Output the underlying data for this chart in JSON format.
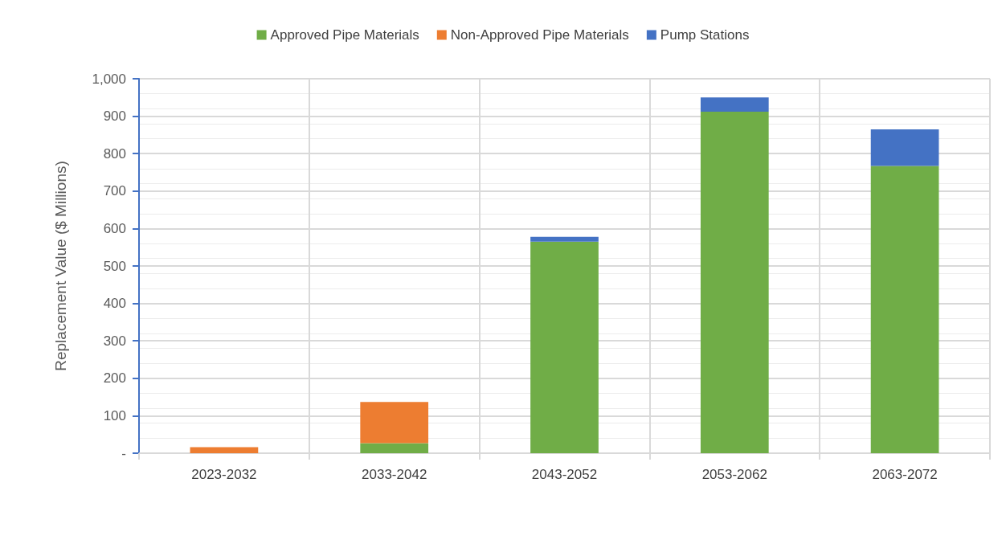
{
  "chart_data": {
    "type": "bar",
    "stacked": true,
    "ylabel": "Replacement Value ($ Millions)",
    "categories": [
      "2023-2032",
      "2033-2042",
      "2043-2052",
      "2053-2062",
      "2063-2072"
    ],
    "series": [
      {
        "name": "Approved Pipe Materials",
        "color": "#70ad47",
        "values": [
          0,
          27,
          565,
          912,
          767
        ]
      },
      {
        "name": "Non-Approved Pipe Materials",
        "color": "#ed7d31",
        "values": [
          16,
          110,
          0,
          0,
          0
        ]
      },
      {
        "name": "Pump Stations",
        "color": "#4472c4",
        "values": [
          0,
          0,
          13,
          38,
          98
        ]
      }
    ],
    "ylim": [
      0,
      1000
    ],
    "yticks": [
      {
        "value": 0,
        "label": "-"
      },
      100,
      200,
      300,
      400,
      500,
      600,
      700,
      800,
      900,
      {
        "value": 1000,
        "label": "1,000"
      }
    ],
    "grid": true,
    "legend": "top"
  }
}
